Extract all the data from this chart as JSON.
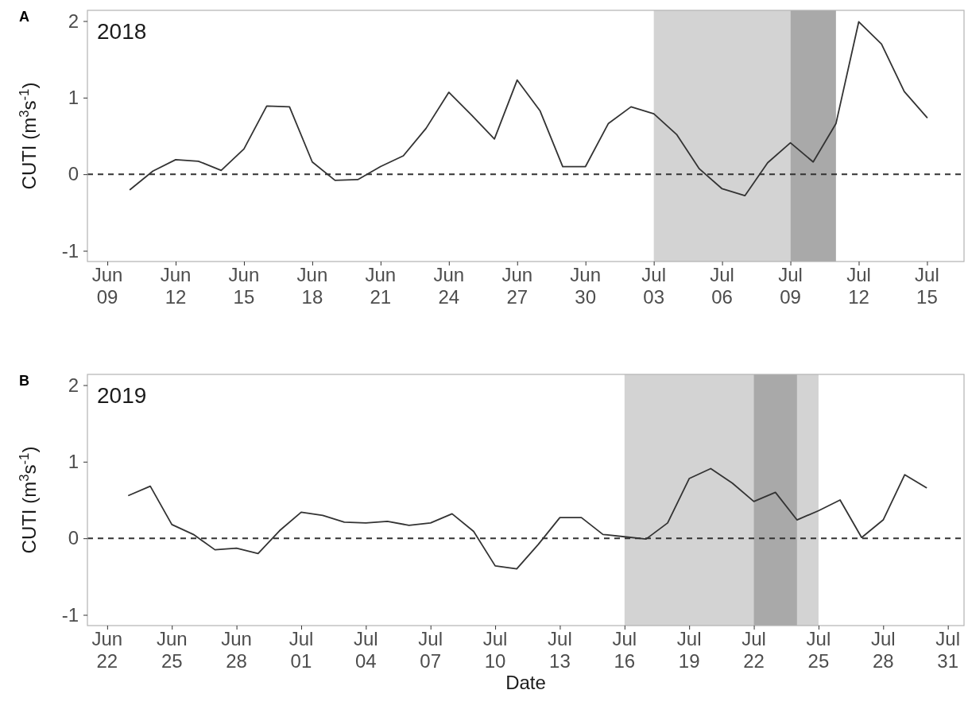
{
  "chart_data": [
    {
      "type": "line",
      "title": "A",
      "ylabel": "CUTI (m$^{3}$s$^{-1}$)",
      "annotations": [
        "2018"
      ],
      "x": [
        "2018-06-10",
        "2018-06-11",
        "2018-06-12",
        "2018-06-13",
        "2018-06-14",
        "2018-06-15",
        "2018-06-16",
        "2018-06-17",
        "2018-06-18",
        "2018-06-19",
        "2018-06-20",
        "2018-06-21",
        "2018-06-22",
        "2018-06-23",
        "2018-06-24",
        "2018-06-25",
        "2018-06-26",
        "2018-06-27",
        "2018-06-28",
        "2018-06-29",
        "2018-06-30",
        "2018-07-01",
        "2018-07-02",
        "2018-07-03",
        "2018-07-04",
        "2018-07-05",
        "2018-07-06",
        "2018-07-07",
        "2018-07-08",
        "2018-07-09",
        "2018-07-10",
        "2018-07-11",
        "2018-07-12",
        "2018-07-13",
        "2018-07-14",
        "2018-07-15"
      ],
      "series": [
        {
          "color": "#333333",
          "values": [
            -0.2,
            0.04,
            0.19,
            0.17,
            0.05,
            0.33,
            0.89,
            0.88,
            0.16,
            -0.08,
            -0.07,
            0.1,
            0.24,
            0.6,
            1.07,
            0.77,
            0.46,
            1.23,
            0.83,
            0.1,
            0.1,
            0.66,
            0.88,
            0.79,
            0.52,
            0.07,
            -0.19,
            -0.28,
            0.15,
            0.41,
            0.16,
            0.66,
            1.99,
            1.7,
            1.08,
            0.74
          ]
        }
      ],
      "xlim": [
        "2018-06-08T03:00",
        "2018-07-16T15:00"
      ],
      "xticks": [
        {
          "value": "2018-06-09",
          "label": "Jun\n09"
        },
        {
          "value": "2018-06-12",
          "label": "Jun\n12"
        },
        {
          "value": "2018-06-15",
          "label": "Jun\n15"
        },
        {
          "value": "2018-06-18",
          "label": "Jun\n18"
        },
        {
          "value": "2018-06-21",
          "label": "Jun\n21"
        },
        {
          "value": "2018-06-24",
          "label": "Jun\n24"
        },
        {
          "value": "2018-06-27",
          "label": "Jun\n27"
        },
        {
          "value": "2018-06-30",
          "label": "Jun\n30"
        },
        {
          "value": "2018-07-03",
          "label": "Jul\n03"
        },
        {
          "value": "2018-07-06",
          "label": "Jul\n06"
        },
        {
          "value": "2018-07-09",
          "label": "Jul\n09"
        },
        {
          "value": "2018-07-12",
          "label": "Jul\n12"
        },
        {
          "value": "2018-07-15",
          "label": "Jul\n15"
        }
      ],
      "ylim": [
        -1.14,
        2.14
      ],
      "yticks": [
        -1,
        0,
        1,
        2
      ],
      "ref_lines": [
        {
          "axis": "y",
          "value": 0,
          "color": "#333333",
          "line_style": "dashed"
        }
      ],
      "bands": [
        {
          "axis": "x",
          "from": "2018-07-03",
          "to": "2018-07-09",
          "color": "#d3d3d3"
        },
        {
          "axis": "x",
          "from": "2018-07-09",
          "to": "2018-07-11",
          "color": "#a9a9a9"
        }
      ],
      "grid": false,
      "marker": "none",
      "line_style": "solid"
    },
    {
      "type": "line",
      "title": "B",
      "ylabel": "CUTI (m$^{3}$s$^{-1}$)",
      "xlabel": "Date",
      "annotations": [
        "2019"
      ],
      "x": [
        "2019-06-23",
        "2019-06-24",
        "2019-06-25",
        "2019-06-26",
        "2019-06-27",
        "2019-06-28",
        "2019-06-29",
        "2019-06-30",
        "2019-07-01",
        "2019-07-02",
        "2019-07-03",
        "2019-07-04",
        "2019-07-05",
        "2019-07-06",
        "2019-07-07",
        "2019-07-08",
        "2019-07-09",
        "2019-07-10",
        "2019-07-11",
        "2019-07-12",
        "2019-07-13",
        "2019-07-14",
        "2019-07-15",
        "2019-07-16",
        "2019-07-17",
        "2019-07-18",
        "2019-07-19",
        "2019-07-20",
        "2019-07-21",
        "2019-07-22",
        "2019-07-23",
        "2019-07-24",
        "2019-07-25",
        "2019-07-26",
        "2019-07-27",
        "2019-07-28",
        "2019-07-29",
        "2019-07-30"
      ],
      "series": [
        {
          "color": "#333333",
          "values": [
            0.56,
            0.68,
            0.18,
            0.05,
            -0.15,
            -0.13,
            -0.2,
            0.1,
            0.34,
            0.3,
            0.21,
            0.2,
            0.22,
            0.17,
            0.2,
            0.32,
            0.09,
            -0.36,
            -0.4,
            -0.08,
            0.27,
            0.27,
            0.05,
            0.02,
            -0.01,
            0.2,
            0.78,
            0.91,
            0.72,
            0.48,
            0.6,
            0.24,
            0.36,
            0.5,
            0.01,
            0.24,
            0.83,
            0.66
          ]
        }
      ],
      "xlim": [
        "2019-06-21T02:00",
        "2019-07-31T18:00"
      ],
      "xticks": [
        {
          "value": "2019-06-22",
          "label": "Jun\n22"
        },
        {
          "value": "2019-06-25",
          "label": "Jun\n25"
        },
        {
          "value": "2019-06-28",
          "label": "Jun\n28"
        },
        {
          "value": "2019-07-01",
          "label": "Jul\n01"
        },
        {
          "value": "2019-07-04",
          "label": "Jul\n04"
        },
        {
          "value": "2019-07-07",
          "label": "Jul\n07"
        },
        {
          "value": "2019-07-10",
          "label": "Jul\n10"
        },
        {
          "value": "2019-07-13",
          "label": "Jul\n13"
        },
        {
          "value": "2019-07-16",
          "label": "Jul\n16"
        },
        {
          "value": "2019-07-19",
          "label": "Jul\n19"
        },
        {
          "value": "2019-07-22",
          "label": "Jul\n22"
        },
        {
          "value": "2019-07-25",
          "label": "Jul\n25"
        },
        {
          "value": "2019-07-28",
          "label": "Jul\n28"
        },
        {
          "value": "2019-07-31",
          "label": "Jul\n31"
        }
      ],
      "ylim": [
        -1.14,
        2.14
      ],
      "yticks": [
        -1,
        0,
        1,
        2
      ],
      "ref_lines": [
        {
          "axis": "y",
          "value": 0,
          "color": "#333333",
          "line_style": "dashed"
        }
      ],
      "bands": [
        {
          "axis": "x",
          "from": "2019-07-16",
          "to": "2019-07-25",
          "color": "#d3d3d3"
        },
        {
          "axis": "x",
          "from": "2019-07-22",
          "to": "2019-07-24",
          "color": "#a9a9a9"
        }
      ],
      "grid": false,
      "marker": "none",
      "line_style": "solid"
    }
  ]
}
